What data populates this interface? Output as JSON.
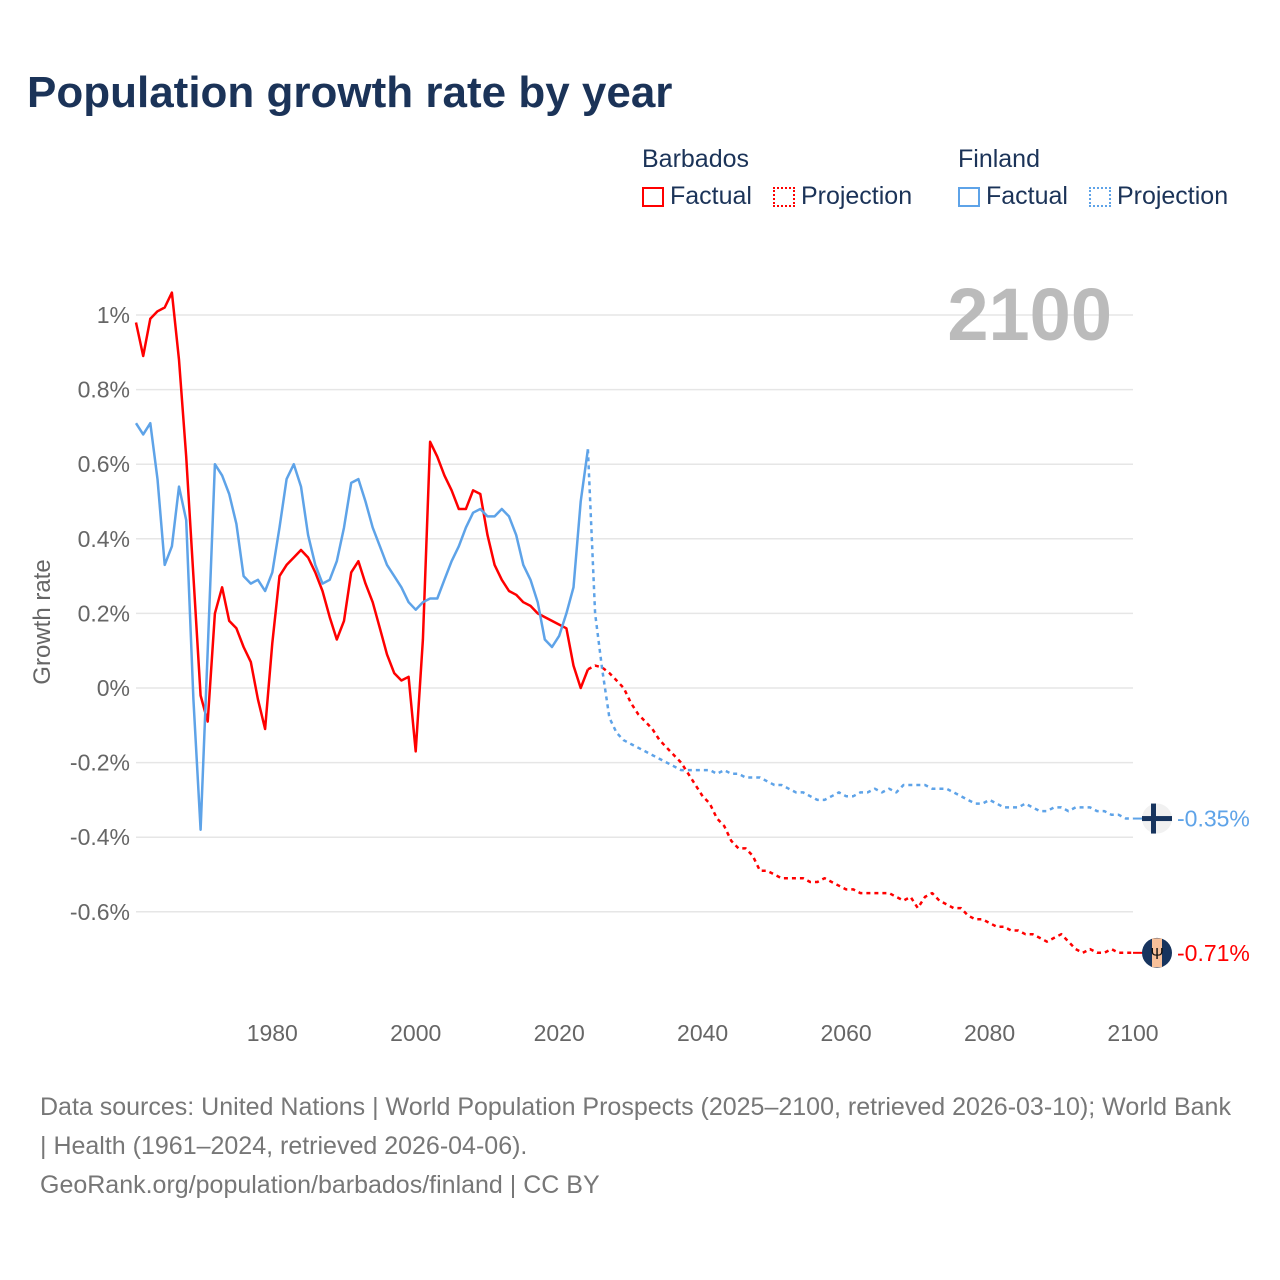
{
  "title": "Population growth rate by year",
  "legend": {
    "groups": [
      {
        "country": "Barbados",
        "factual": "Factual",
        "projection": "Projection",
        "color": "#ff0000"
      },
      {
        "country": "Finland",
        "factual": "Factual",
        "projection": "Projection",
        "color": "#5ea3e8"
      }
    ]
  },
  "current_year": "2100",
  "footer": {
    "sources": "Data sources: United Nations | World Population Prospects (2025–2100, retrieved 2026-03-10); World Bank | Health (1961–2024, retrieved 2026-04-06).",
    "credit": "GeoRank.org/population/barbados/finland | CC BY"
  },
  "chart_data": {
    "type": "line",
    "title": "Population growth rate by year",
    "xlabel": "",
    "ylabel": "Growth rate",
    "xlim": [
      1961,
      2100
    ],
    "ylim": [
      -0.82,
      1.08
    ],
    "x_ticks": [
      "1980",
      "2000",
      "2020",
      "2040",
      "2060",
      "2080",
      "2100"
    ],
    "x_tick_values": [
      1980,
      2000,
      2020,
      2040,
      2060,
      2080,
      2100
    ],
    "y_ticks": [
      "1%",
      "0.8%",
      "0.6%",
      "0.4%",
      "0.2%",
      "0%",
      "-0.2%",
      "-0.4%",
      "-0.6%"
    ],
    "y_tick_values": [
      1,
      0.8,
      0.6,
      0.4,
      0.2,
      0,
      -0.2,
      -0.4,
      -0.6
    ],
    "grid": true,
    "legend_position": "top-right",
    "series": [
      {
        "name": "Barbados Factual",
        "country": "Barbados",
        "kind": "factual",
        "color": "#ff0000",
        "x_start": 1961,
        "values": [
          0.98,
          0.89,
          0.99,
          1.01,
          1.02,
          1.06,
          0.88,
          0.62,
          0.3,
          -0.02,
          -0.09,
          0.2,
          0.27,
          0.18,
          0.16,
          0.11,
          0.07,
          -0.03,
          -0.11,
          0.12,
          0.3,
          0.33,
          0.35,
          0.37,
          0.35,
          0.31,
          0.26,
          0.19,
          0.13,
          0.18,
          0.31,
          0.34,
          0.28,
          0.23,
          0.16,
          0.09,
          0.04,
          0.02,
          0.03,
          -0.17,
          0.13,
          0.66,
          0.62,
          0.57,
          0.53,
          0.48,
          0.48,
          0.53,
          0.52,
          0.41,
          0.33,
          0.29,
          0.26,
          0.25,
          0.23,
          0.22,
          0.2,
          0.19,
          0.18,
          0.17,
          0.16,
          0.06,
          0.0,
          0.05
        ]
      },
      {
        "name": "Barbados Projection",
        "country": "Barbados",
        "kind": "projection",
        "color": "#ff0000",
        "x_start": 2024,
        "values": [
          0.05,
          0.06,
          0.055,
          0.04,
          0.02,
          0.0,
          -0.04,
          -0.07,
          -0.09,
          -0.11,
          -0.14,
          -0.16,
          -0.18,
          -0.2,
          -0.23,
          -0.26,
          -0.29,
          -0.31,
          -0.35,
          -0.37,
          -0.41,
          -0.43,
          -0.43,
          -0.45,
          -0.49,
          -0.49,
          -0.5,
          -0.51,
          -0.51,
          -0.51,
          -0.51,
          -0.52,
          -0.52,
          -0.51,
          -0.52,
          -0.53,
          -0.54,
          -0.54,
          -0.55,
          -0.55,
          -0.55,
          -0.55,
          -0.55,
          -0.56,
          -0.57,
          -0.56,
          -0.59,
          -0.56,
          -0.55,
          -0.57,
          -0.58,
          -0.59,
          -0.59,
          -0.61,
          -0.62,
          -0.62,
          -0.63,
          -0.64,
          -0.64,
          -0.65,
          -0.65,
          -0.66,
          -0.66,
          -0.67,
          -0.68,
          -0.67,
          -0.66,
          -0.68,
          -0.7,
          -0.71,
          -0.7,
          -0.71,
          -0.71,
          -0.7,
          -0.71,
          -0.71,
          -0.71
        ],
        "end_label": "-0.71%"
      },
      {
        "name": "Finland Factual",
        "country": "Finland",
        "kind": "factual",
        "color": "#5ea3e8",
        "x_start": 1961,
        "values": [
          0.71,
          0.68,
          0.71,
          0.56,
          0.33,
          0.38,
          0.54,
          0.45,
          -0.03,
          -0.38,
          0.1,
          0.6,
          0.57,
          0.52,
          0.44,
          0.3,
          0.28,
          0.29,
          0.26,
          0.31,
          0.43,
          0.56,
          0.6,
          0.54,
          0.41,
          0.33,
          0.28,
          0.29,
          0.34,
          0.43,
          0.55,
          0.56,
          0.5,
          0.43,
          0.38,
          0.33,
          0.3,
          0.27,
          0.23,
          0.21,
          0.23,
          0.24,
          0.24,
          0.29,
          0.34,
          0.38,
          0.43,
          0.47,
          0.48,
          0.46,
          0.46,
          0.48,
          0.46,
          0.41,
          0.33,
          0.29,
          0.23,
          0.13,
          0.11,
          0.14,
          0.2,
          0.27,
          0.5,
          0.64
        ]
      },
      {
        "name": "Finland Projection",
        "country": "Finland",
        "kind": "projection",
        "color": "#5ea3e8",
        "x_start": 2024,
        "values": [
          0.64,
          0.2,
          0.05,
          -0.08,
          -0.12,
          -0.14,
          -0.15,
          -0.16,
          -0.17,
          -0.18,
          -0.19,
          -0.2,
          -0.21,
          -0.22,
          -0.22,
          -0.22,
          -0.22,
          -0.22,
          -0.23,
          -0.22,
          -0.23,
          -0.23,
          -0.24,
          -0.24,
          -0.24,
          -0.25,
          -0.26,
          -0.26,
          -0.27,
          -0.28,
          -0.28,
          -0.29,
          -0.3,
          -0.3,
          -0.29,
          -0.28,
          -0.29,
          -0.29,
          -0.28,
          -0.28,
          -0.27,
          -0.28,
          -0.27,
          -0.28,
          -0.26,
          -0.26,
          -0.26,
          -0.26,
          -0.27,
          -0.27,
          -0.27,
          -0.28,
          -0.29,
          -0.3,
          -0.31,
          -0.31,
          -0.3,
          -0.31,
          -0.32,
          -0.32,
          -0.32,
          -0.31,
          -0.32,
          -0.33,
          -0.33,
          -0.32,
          -0.32,
          -0.33,
          -0.32,
          -0.32,
          -0.32,
          -0.33,
          -0.33,
          -0.34,
          -0.34,
          -0.35,
          -0.35
        ],
        "end_label": "-0.35%"
      }
    ]
  }
}
